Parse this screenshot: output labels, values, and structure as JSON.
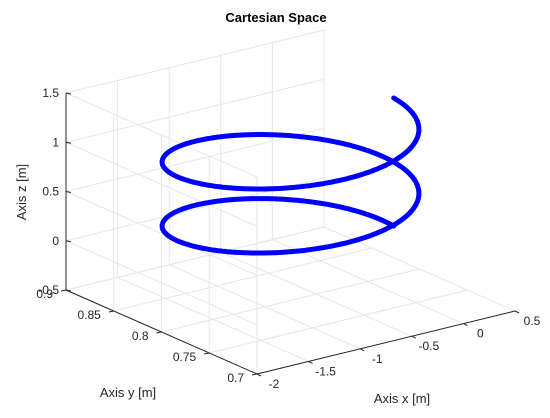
{
  "chart_data": {
    "type": "line3d",
    "title": "Cartesian Space",
    "xlabel": "Axis x [m]",
    "ylabel": "Axis y [m]",
    "zlabel": "Axis z [m]",
    "xlim": [
      -2,
      0.5
    ],
    "ylim": [
      0.7,
      0.9
    ],
    "zlim": [
      -0.5,
      1.5
    ],
    "x_ticks": [
      "-2",
      "-1.5",
      "-1",
      "-0.5",
      "0",
      "0.5"
    ],
    "y_ticks": [
      "0.7",
      "0.75",
      "0.8",
      "0.85",
      "0.9"
    ],
    "z_ticks": [
      "-0.5",
      "0",
      "0.5",
      "1",
      "1.5"
    ],
    "grid": true,
    "series": [
      {
        "shape": "helix",
        "center": [
          -0.75,
          0.8
        ],
        "radius_x": 1.0,
        "radius_y": 0.08,
        "z_start": 0.0,
        "z_end": 1.3,
        "turns": 2,
        "color": "#0000ff"
      }
    ]
  }
}
